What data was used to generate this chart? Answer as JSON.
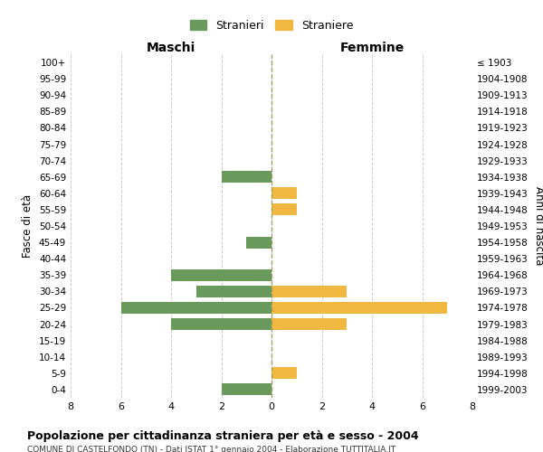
{
  "age_groups": [
    "0-4",
    "5-9",
    "10-14",
    "15-19",
    "20-24",
    "25-29",
    "30-34",
    "35-39",
    "40-44",
    "45-49",
    "50-54",
    "55-59",
    "60-64",
    "65-69",
    "70-74",
    "75-79",
    "80-84",
    "85-89",
    "90-94",
    "95-99",
    "100+"
  ],
  "birth_years": [
    "1999-2003",
    "1994-1998",
    "1989-1993",
    "1984-1988",
    "1979-1983",
    "1974-1978",
    "1969-1973",
    "1964-1968",
    "1959-1963",
    "1954-1958",
    "1949-1953",
    "1944-1948",
    "1939-1943",
    "1934-1938",
    "1929-1933",
    "1924-1928",
    "1919-1923",
    "1914-1918",
    "1909-1913",
    "1904-1908",
    "≤ 1903"
  ],
  "males": [
    2,
    0,
    0,
    0,
    4,
    6,
    3,
    4,
    0,
    1,
    0,
    0,
    0,
    2,
    0,
    0,
    0,
    0,
    0,
    0,
    0
  ],
  "females": [
    0,
    1,
    0,
    0,
    3,
    7,
    3,
    0,
    0,
    0,
    0,
    1,
    1,
    0,
    0,
    0,
    0,
    0,
    0,
    0,
    0
  ],
  "male_color": "#6a9a5b",
  "female_color": "#f0b840",
  "male_label": "Stranieri",
  "female_label": "Straniere",
  "title": "Popolazione per cittadinanza straniera per età e sesso - 2004",
  "subtitle": "COMUNE DI CASTELFONDO (TN) - Dati ISTAT 1° gennaio 2004 - Elaborazione TUTTITALIA.IT",
  "xlabel_left": "Maschi",
  "xlabel_right": "Femmine",
  "ylabel_left": "Fasce di età",
  "ylabel_right": "Anni di nascita",
  "xlim": 8,
  "background_color": "#ffffff",
  "grid_color": "#cccccc"
}
